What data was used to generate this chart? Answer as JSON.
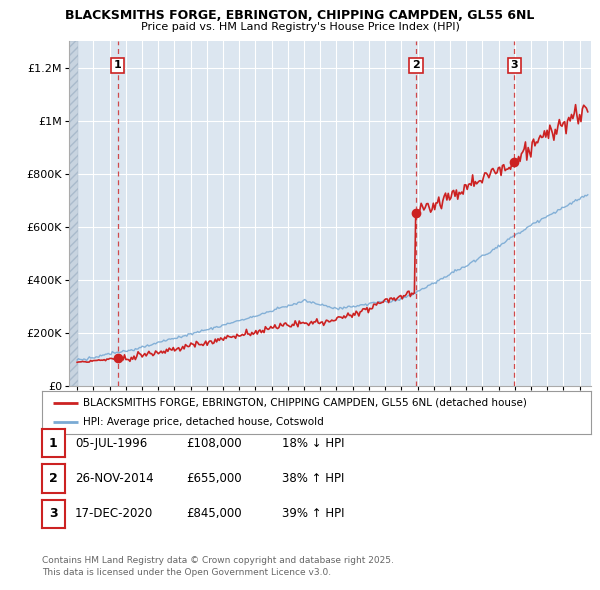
{
  "title_line1": "BLACKSMITHS FORGE, EBRINGTON, CHIPPING CAMPDEN, GL55 6NL",
  "title_line2": "Price paid vs. HM Land Registry's House Price Index (HPI)",
  "background_color": "#ffffff",
  "plot_bg_color": "#dce6f0",
  "grid_color": "#ffffff",
  "hpi_color": "#7aaad4",
  "price_color": "#cc2222",
  "dashed_line_color": "#cc2222",
  "yticks": [
    0,
    200000,
    400000,
    600000,
    800000,
    1000000,
    1200000
  ],
  "ytick_labels": [
    "£0",
    "£200K",
    "£400K",
    "£600K",
    "£800K",
    "£1M",
    "£1.2M"
  ],
  "xmin": 1993.5,
  "xmax": 2025.7,
  "ymin": 0,
  "ymax": 1300000,
  "sale_points": [
    {
      "year": 1996.51,
      "price": 108000,
      "label": "1"
    },
    {
      "year": 2014.9,
      "price": 655000,
      "label": "2"
    },
    {
      "year": 2020.96,
      "price": 845000,
      "label": "3"
    }
  ],
  "sale_annotations": [
    {
      "label": "1",
      "date": "05-JUL-1996",
      "price": "£108,000",
      "pct": "18% ↓ HPI"
    },
    {
      "label": "2",
      "date": "26-NOV-2014",
      "price": "£655,000",
      "pct": "38% ↑ HPI"
    },
    {
      "label": "3",
      "date": "17-DEC-2020",
      "price": "£845,000",
      "pct": "39% ↑ HPI"
    }
  ],
  "legend_entry1": "BLACKSMITHS FORGE, EBRINGTON, CHIPPING CAMPDEN, GL55 6NL (detached house)",
  "legend_entry2": "HPI: Average price, detached house, Cotswold",
  "footnote": "Contains HM Land Registry data © Crown copyright and database right 2025.\nThis data is licensed under the Open Government Licence v3.0."
}
